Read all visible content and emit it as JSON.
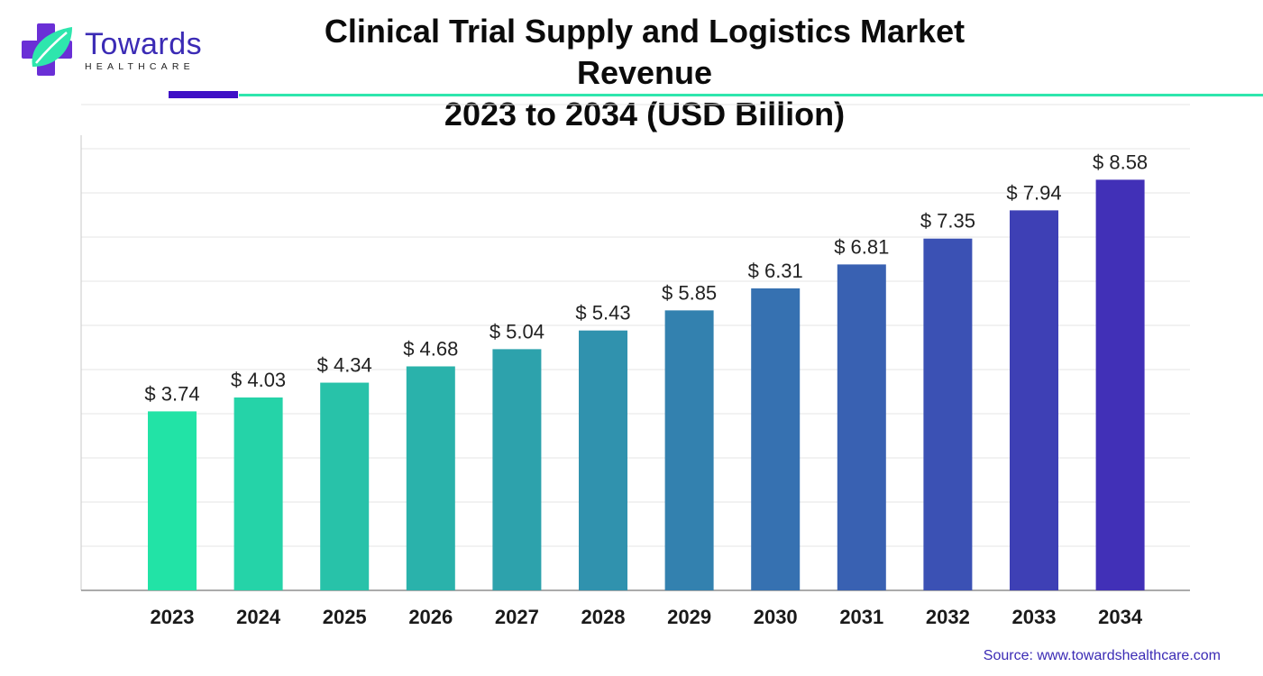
{
  "brand": {
    "name": "Towards",
    "tagline": "HEALTHCARE",
    "colors": {
      "purple": "#3b2bb5",
      "teal": "#2ee6ad",
      "accent_bar": "#3f10c6"
    }
  },
  "title_line1": "Clinical Trial Supply and Logistics Market Revenue",
  "title_line2": "2023 to 2034 (USD Billion)",
  "source": "Source: www.towardshealthcare.com",
  "chart_data": {
    "type": "bar",
    "categories": [
      "2023",
      "2024",
      "2025",
      "2026",
      "2027",
      "2028",
      "2029",
      "2030",
      "2031",
      "2032",
      "2033",
      "2034"
    ],
    "values": [
      3.74,
      4.03,
      4.34,
      4.68,
      5.04,
      5.43,
      5.85,
      6.31,
      6.81,
      7.35,
      7.94,
      8.58
    ],
    "value_labels": [
      "$ 3.74",
      "$ 4.03",
      "$ 4.34",
      "$ 4.68",
      "$ 5.04",
      "$ 5.43",
      "$ 5.85",
      "$ 6.31",
      "$ 6.81",
      "$ 7.35",
      "$ 7.94",
      "$ 8.58"
    ],
    "title": "Clinical Trial Supply and Logistics Market Revenue 2023 to 2034 (USD Billion)",
    "xlabel": "",
    "ylabel": "",
    "grid": true,
    "legend": "none",
    "gradient": {
      "start": "#22e3a6",
      "end": "#4130b7"
    }
  }
}
